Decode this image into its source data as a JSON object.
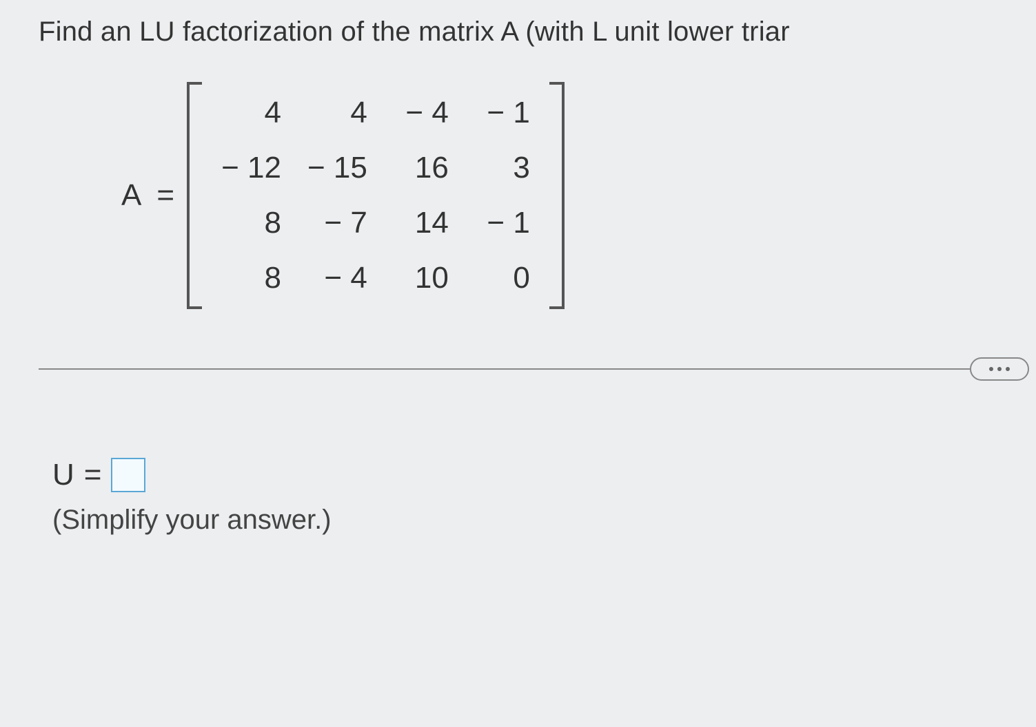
{
  "question": {
    "text": "Find an LU factorization of the matrix A (with L unit lower triar"
  },
  "matrix": {
    "label": "A",
    "equals": "=",
    "rows": [
      [
        "4",
        "4",
        "− 4",
        "− 1"
      ],
      [
        "− 12",
        "− 15",
        "16",
        "3"
      ],
      [
        "8",
        "− 7",
        "14",
        "− 1"
      ],
      [
        "8",
        "− 4",
        "10",
        "0"
      ]
    ]
  },
  "answer": {
    "variable": "U",
    "equals": "=",
    "hint": "(Simplify your answer.)"
  },
  "colors": {
    "page_bg": "#eceef0",
    "text": "#2a2a2a",
    "rule": "#888888",
    "input_border": "#5aa7d6",
    "input_bg": "#f4fbff",
    "bracket": "#555555"
  }
}
